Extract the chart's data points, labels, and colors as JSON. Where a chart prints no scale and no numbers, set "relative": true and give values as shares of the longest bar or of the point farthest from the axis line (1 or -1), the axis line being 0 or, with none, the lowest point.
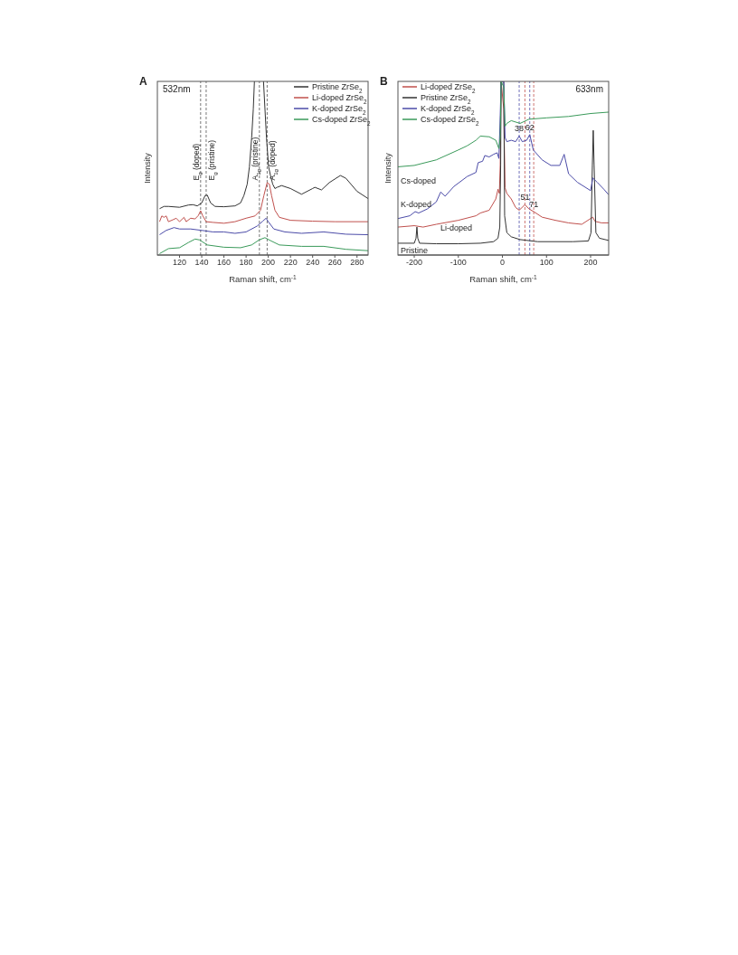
{
  "chart_data": [
    {
      "type": "line",
      "title": "A",
      "xlabel": "Raman shift, cm$^{-1}$",
      "ylabel": "Intensity",
      "relative": true,
      "legend": "top right",
      "xlim": [
        100,
        290
      ],
      "xticks": [
        120,
        140,
        160,
        180,
        200,
        220,
        240,
        260,
        280
      ],
      "annotations": [
        "532nm"
      ],
      "ref_lines": [
        {
          "axis": "x",
          "value": 139,
          "label": "E$_{g}$ (doped)",
          "color": "#555555",
          "line_style": "dashed"
        },
        {
          "axis": "x",
          "value": 144,
          "label": "E$_{g}$ (pristine)",
          "color": "#555555",
          "line_style": "dashed"
        },
        {
          "axis": "x",
          "value": 192,
          "label": "A$_{1g}$ (pristine)",
          "color": "#555555",
          "line_style": "dashed"
        },
        {
          "axis": "x",
          "value": 199,
          "label": "A$_{1g}$ (doped)",
          "color": "#555555",
          "line_style": "dashed"
        }
      ],
      "series": [
        {
          "name": "Pristine ZrSe$_{2}$",
          "color": "#333333",
          "x": [
            102,
            106,
            110,
            120,
            128,
            132,
            136,
            140,
            143,
            145,
            148,
            152,
            160,
            170,
            175,
            178,
            181,
            183,
            185,
            186.5,
            187.5,
            191,
            195.7,
            198.4,
            200.3,
            202,
            204,
            206,
            208,
            212,
            220,
            230,
            240,
            242,
            248,
            255,
            265,
            270,
            280,
            290
          ],
          "values": [
            0.267,
            0.28,
            0.28,
            0.275,
            0.288,
            0.29,
            0.283,
            0.3,
            0.342,
            0.345,
            0.3,
            0.28,
            0.278,
            0.283,
            0.3,
            0.342,
            0.408,
            0.508,
            0.675,
            0.84,
            1.0,
            null,
            1.0,
            0.675,
            0.508,
            0.458,
            0.408,
            0.383,
            0.39,
            0.4,
            0.383,
            0.35,
            0.383,
            0.39,
            0.375,
            0.417,
            0.458,
            0.442,
            0.367,
            0.325
          ]
        },
        {
          "name": "Li-doped ZrSe$_{2}$",
          "color": "#c0504d",
          "x": [
            102,
            104,
            106,
            108,
            110,
            114,
            117,
            120,
            124,
            126,
            130,
            134,
            137,
            139,
            141,
            144,
            150,
            160,
            170,
            180,
            188,
            193,
            196,
            199,
            201,
            203,
            206,
            210,
            220,
            240,
            260,
            290
          ],
          "values": [
            0.192,
            0.225,
            0.217,
            0.225,
            0.192,
            0.203,
            0.212,
            0.192,
            0.217,
            0.192,
            0.212,
            0.208,
            0.228,
            0.255,
            0.225,
            0.192,
            0.188,
            0.183,
            0.192,
            0.212,
            0.225,
            0.258,
            0.342,
            0.417,
            0.408,
            0.342,
            0.258,
            0.217,
            0.2,
            0.195,
            0.192,
            0.192
          ]
        },
        {
          "name": "K-doped ZrSe$_{2}$",
          "color": "#4b4ba8",
          "x": [
            102,
            108,
            115,
            120,
            130,
            140,
            150,
            160,
            170,
            180,
            190,
            195,
            198,
            200,
            205,
            215,
            230,
            250,
            270,
            290
          ],
          "values": [
            0.117,
            0.142,
            0.158,
            0.15,
            0.15,
            0.142,
            0.133,
            0.133,
            0.125,
            0.133,
            0.167,
            0.195,
            0.212,
            0.192,
            0.15,
            0.133,
            0.125,
            0.133,
            0.12,
            0.117
          ]
        },
        {
          "name": "Cs-doped ZrSe$_{2}$",
          "color": "#3a9a5a",
          "x": [
            102,
            110,
            120,
            128,
            134,
            138,
            145,
            160,
            175,
            185,
            192,
            197,
            202,
            210,
            230,
            250,
            270,
            290
          ],
          "values": [
            0.008,
            0.037,
            0.042,
            0.072,
            0.092,
            0.087,
            0.058,
            0.045,
            0.042,
            0.058,
            0.088,
            0.1,
            0.083,
            0.058,
            0.05,
            0.05,
            0.033,
            0.025
          ]
        }
      ]
    },
    {
      "type": "line",
      "title": "B",
      "xlabel": "Raman shift, cm$^{-1}$",
      "ylabel": "Intensity",
      "relative": true,
      "legend": "top left",
      "xlim": [
        -237,
        241
      ],
      "xticks": [
        -200,
        -100,
        0,
        100,
        200
      ],
      "annotations": [
        "633nm",
        "Cs-doped",
        "K-doped",
        "Li-doped",
        "Pristine"
      ],
      "ref_lines": [
        {
          "axis": "x",
          "value": 38,
          "label": "38",
          "color": "#4b4ba8",
          "line_style": "dashed"
        },
        {
          "axis": "x",
          "value": 62,
          "label": "62",
          "color": "#4b4ba8",
          "line_style": "dashed"
        },
        {
          "axis": "x",
          "value": 51,
          "label": "51",
          "color": "#c0504d",
          "line_style": "dashed"
        },
        {
          "axis": "x",
          "value": 71,
          "label": "71",
          "color": "#c0504d",
          "line_style": "dashed"
        }
      ],
      "series": [
        {
          "name": "Li-doped ZrSe$_{2}$",
          "color": "#c0504d",
          "x": [
            -237,
            -200,
            -180,
            -150,
            -100,
            -60,
            -50,
            -30,
            -15,
            -10,
            -7,
            -5,
            -3,
            3,
            6,
            10,
            20,
            30,
            38,
            51,
            60,
            71,
            90,
            120,
            150,
            180,
            200,
            205,
            210,
            225,
            241
          ],
          "values": [
            0.161,
            0.169,
            0.161,
            0.177,
            0.2,
            0.226,
            0.242,
            0.258,
            0.323,
            0.379,
            0.355,
            0.516,
            1.0,
            0.839,
            0.387,
            0.355,
            0.323,
            0.274,
            0.258,
            0.29,
            0.266,
            0.25,
            0.218,
            0.2,
            0.185,
            0.177,
            0.21,
            0.218,
            0.194,
            0.185,
            0.185
          ]
        },
        {
          "name": "Pristine ZrSe$_{2}$",
          "color": "#333333",
          "x": [
            -237,
            -200,
            -196,
            -194,
            -192,
            -188,
            -150,
            -100,
            -50,
            -20,
            -10,
            -6,
            -4,
            -3,
            3,
            5,
            10,
            20,
            40,
            80,
            120,
            160,
            195,
            201,
            204,
            206,
            208,
            212,
            220,
            241
          ],
          "values": [
            0.068,
            0.068,
            0.097,
            0.161,
            0.097,
            0.068,
            0.065,
            0.065,
            0.068,
            0.077,
            0.097,
            0.161,
            0.516,
            1.0,
            1.0,
            0.226,
            0.129,
            0.105,
            0.089,
            0.077,
            0.077,
            0.077,
            0.081,
            0.129,
            0.516,
            0.718,
            0.516,
            0.129,
            0.097,
            0.084
          ]
        },
        {
          "name": "K-doped ZrSe$_{2}$",
          "color": "#4b4ba8",
          "x": [
            -237,
            -210,
            -198,
            -190,
            -170,
            -150,
            -140,
            -130,
            -110,
            -80,
            -60,
            -55,
            -45,
            -40,
            -30,
            -20,
            -12,
            -8,
            -5,
            -3,
            3,
            6,
            10,
            20,
            30,
            38,
            45,
            55,
            62,
            70,
            90,
            110,
            130,
            140,
            150,
            170,
            200,
            205,
            215,
            230,
            241
          ],
          "values": [
            0.21,
            0.226,
            0.25,
            0.242,
            0.266,
            0.306,
            0.363,
            0.339,
            0.395,
            0.452,
            0.476,
            0.532,
            0.54,
            0.573,
            0.565,
            0.58,
            0.589,
            0.556,
            0.806,
            1.0,
            1.0,
            0.677,
            0.653,
            0.661,
            0.653,
            0.685,
            0.653,
            0.661,
            0.694,
            0.605,
            0.548,
            0.516,
            0.516,
            0.58,
            0.468,
            0.419,
            0.371,
            0.444,
            0.419,
            0.379,
            0.347
          ]
        },
        {
          "name": "Cs-doped ZrSe$_{2}$",
          "color": "#3a9a5a",
          "x": [
            -237,
            -200,
            -150,
            -100,
            -80,
            -60,
            -50,
            -30,
            -15,
            -8,
            -5,
            -3,
            3,
            6,
            10,
            20,
            40,
            60,
            100,
            150,
            200,
            241
          ],
          "values": [
            0.508,
            0.516,
            0.548,
            0.605,
            0.629,
            0.661,
            0.685,
            0.681,
            0.661,
            0.613,
            0.677,
            1.0,
            0.968,
            0.742,
            0.758,
            0.774,
            0.758,
            0.782,
            0.79,
            0.798,
            0.815,
            0.823
          ]
        }
      ]
    }
  ]
}
